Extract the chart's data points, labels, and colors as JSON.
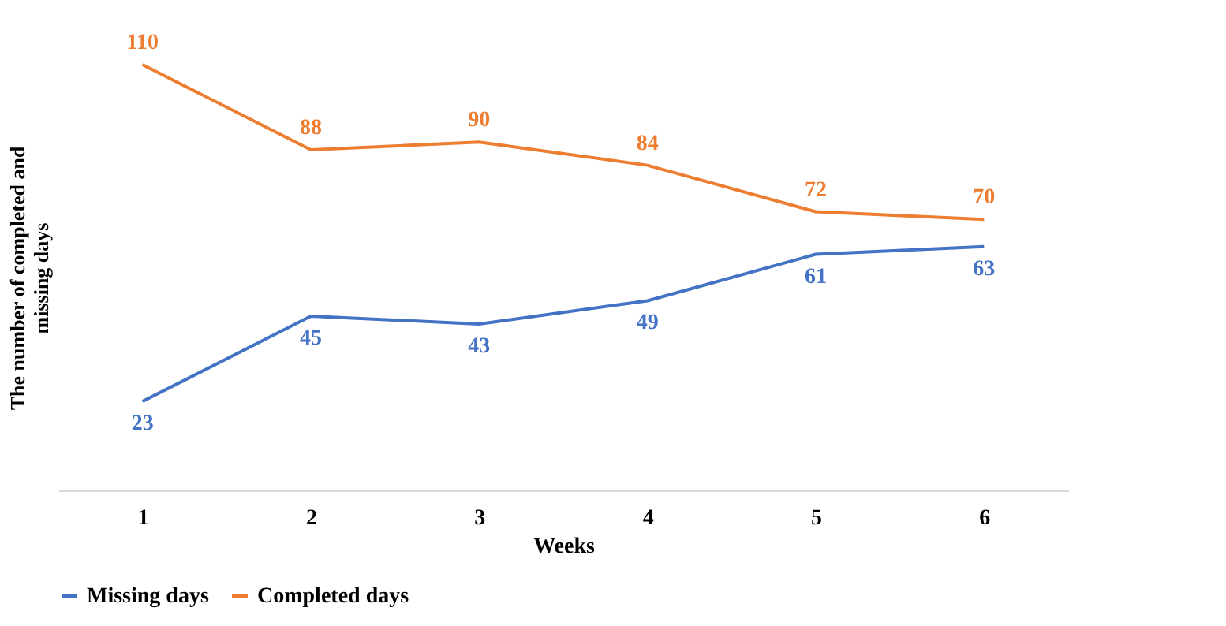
{
  "chart_data": {
    "type": "line",
    "xlabel": "Weeks",
    "ylabel": "The number of completed and missing days",
    "categories": [
      "1",
      "2",
      "3",
      "4",
      "5",
      "6"
    ],
    "series": [
      {
        "name": "Missing days",
        "color": "#4472c4",
        "values": [
          23,
          45,
          43,
          49,
          61,
          63
        ]
      },
      {
        "name": "Completed days",
        "color": "#ed7d31",
        "values": [
          110,
          88,
          90,
          84,
          72,
          70
        ]
      }
    ],
    "data_labels": true,
    "legend": "bottom",
    "grid": false,
    "marker": "none",
    "line_style": "solid"
  }
}
